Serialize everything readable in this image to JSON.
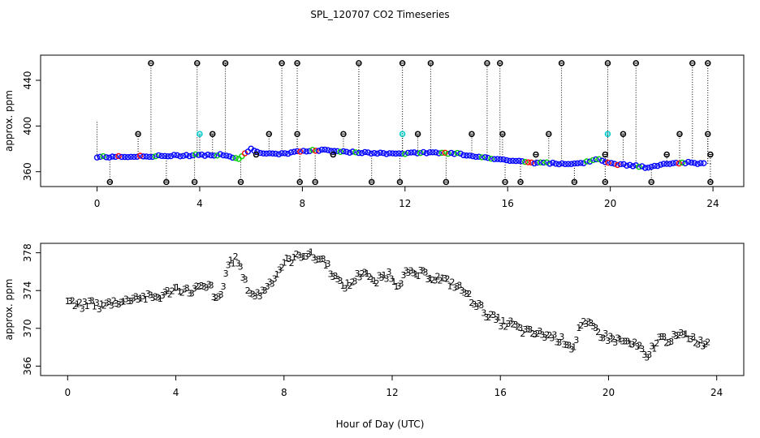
{
  "title": "SPL_120707  CO2 Timeseries",
  "xlabel": "Hour of Day (UTC)",
  "colors": {
    "s1": "#ff0000",
    "s2": "#00cc00",
    "s3": "#0000ff",
    "extra": "#00cccc",
    "stem": "#000000"
  },
  "chart_data": [
    {
      "type": "scatter",
      "ylabel": "approx. ppm",
      "xlim": [
        -2.2,
        25.2
      ],
      "ylim": [
        347,
        462
      ],
      "xticks": [
        0,
        4,
        8,
        12,
        16,
        20,
        24
      ],
      "yticks": [
        360,
        400,
        440
      ],
      "baseline": [
        [
          0,
          373
        ],
        [
          1,
          373
        ],
        [
          2,
          373.5
        ],
        [
          3,
          374
        ],
        [
          4,
          374.5
        ],
        [
          5,
          375
        ],
        [
          5.5,
          371
        ],
        [
          6,
          380
        ],
        [
          6.5,
          376
        ],
        [
          7,
          375
        ],
        [
          8,
          378
        ],
        [
          9,
          379
        ],
        [
          10,
          377
        ],
        [
          11,
          376
        ],
        [
          12,
          376
        ],
        [
          13,
          377
        ],
        [
          14,
          376
        ],
        [
          15,
          373
        ],
        [
          16,
          370
        ],
        [
          17,
          368
        ],
        [
          18,
          367
        ],
        [
          19,
          368
        ],
        [
          19.5,
          372
        ],
        [
          20,
          367
        ],
        [
          21,
          365
        ],
        [
          21.5,
          363
        ],
        [
          22,
          367
        ],
        [
          23,
          368
        ],
        [
          23.7,
          367
        ]
      ],
      "spikes": [
        {
          "x": 0.0,
          "y": 405,
          "marker": false
        },
        {
          "x": 0.5,
          "y": 351
        },
        {
          "x": 1.6,
          "y": 393
        },
        {
          "x": 2.1,
          "y": 455
        },
        {
          "x": 2.7,
          "y": 351
        },
        {
          "x": 3.8,
          "y": 351
        },
        {
          "x": 3.9,
          "y": 455
        },
        {
          "x": 4.0,
          "y": 393,
          "color": "extra"
        },
        {
          "x": 4.5,
          "y": 393
        },
        {
          "x": 5.0,
          "y": 455
        },
        {
          "x": 5.6,
          "y": 351
        },
        {
          "x": 6.2,
          "y": 375
        },
        {
          "x": 6.7,
          "y": 393
        },
        {
          "x": 7.2,
          "y": 455
        },
        {
          "x": 7.8,
          "y": 455
        },
        {
          "x": 7.8,
          "y": 393
        },
        {
          "x": 7.9,
          "y": 351
        },
        {
          "x": 8.5,
          "y": 351
        },
        {
          "x": 9.2,
          "y": 375
        },
        {
          "x": 9.6,
          "y": 393
        },
        {
          "x": 10.2,
          "y": 455
        },
        {
          "x": 10.7,
          "y": 351
        },
        {
          "x": 11.8,
          "y": 351
        },
        {
          "x": 11.9,
          "y": 455
        },
        {
          "x": 11.9,
          "y": 393,
          "color": "extra"
        },
        {
          "x": 12.5,
          "y": 393
        },
        {
          "x": 13.0,
          "y": 455
        },
        {
          "x": 13.6,
          "y": 351
        },
        {
          "x": 14.6,
          "y": 393
        },
        {
          "x": 15.2,
          "y": 455
        },
        {
          "x": 15.7,
          "y": 455
        },
        {
          "x": 15.8,
          "y": 393
        },
        {
          "x": 15.9,
          "y": 351
        },
        {
          "x": 16.5,
          "y": 351
        },
        {
          "x": 17.1,
          "y": 375
        },
        {
          "x": 17.6,
          "y": 393
        },
        {
          "x": 18.1,
          "y": 455
        },
        {
          "x": 18.6,
          "y": 351
        },
        {
          "x": 19.8,
          "y": 351
        },
        {
          "x": 19.9,
          "y": 455
        },
        {
          "x": 19.8,
          "y": 375
        },
        {
          "x": 19.9,
          "y": 393,
          "color": "extra"
        },
        {
          "x": 20.5,
          "y": 393
        },
        {
          "x": 21.0,
          "y": 455
        },
        {
          "x": 21.6,
          "y": 351
        },
        {
          "x": 22.2,
          "y": 375
        },
        {
          "x": 22.7,
          "y": 393
        },
        {
          "x": 23.2,
          "y": 455
        },
        {
          "x": 23.8,
          "y": 455
        },
        {
          "x": 23.8,
          "y": 393
        },
        {
          "x": 23.9,
          "y": 351
        },
        {
          "x": 23.9,
          "y": 375
        }
      ]
    },
    {
      "type": "scatter",
      "ylabel": "approx. ppm",
      "xlim": [
        -1.0,
        25.0
      ],
      "ylim": [
        365,
        379
      ],
      "xticks": [
        0,
        4,
        8,
        12,
        16,
        20,
        24
      ],
      "yticks": [
        366,
        370,
        374,
        378
      ],
      "series": [
        {
          "symbol": "1",
          "color": "s1"
        },
        {
          "symbol": "2",
          "color": "s2"
        },
        {
          "symbol": "3",
          "color": "s3"
        }
      ],
      "baseline": [
        [
          0,
          373
        ],
        [
          0.3,
          372.4
        ],
        [
          0.6,
          372.4
        ],
        [
          0.9,
          372.8
        ],
        [
          1.2,
          372.3
        ],
        [
          1.5,
          372.6
        ],
        [
          1.8,
          372.9
        ],
        [
          2.1,
          372.8
        ],
        [
          2.4,
          373.3
        ],
        [
          2.7,
          373.3
        ],
        [
          3.0,
          373.3
        ],
        [
          3.3,
          373.3
        ],
        [
          3.6,
          373.6
        ],
        [
          3.9,
          374.2
        ],
        [
          4.2,
          374.2
        ],
        [
          4.5,
          373.9
        ],
        [
          4.8,
          374.3
        ],
        [
          5.1,
          374.2
        ],
        [
          5.3,
          374.5
        ],
        [
          5.5,
          372.8
        ],
        [
          5.7,
          373.6
        ],
        [
          5.9,
          376.6
        ],
        [
          6.1,
          377.3
        ],
        [
          6.3,
          377.2
        ],
        [
          6.5,
          375.2
        ],
        [
          6.8,
          373.6
        ],
        [
          7.1,
          373.6
        ],
        [
          7.4,
          374.6
        ],
        [
          7.7,
          375.6
        ],
        [
          8.0,
          377.0
        ],
        [
          8.3,
          377.3
        ],
        [
          8.6,
          377.8
        ],
        [
          8.9,
          377.9
        ],
        [
          9.2,
          377.4
        ],
        [
          9.5,
          377.2
        ],
        [
          9.8,
          375.8
        ],
        [
          10.1,
          374.6
        ],
        [
          10.4,
          374.5
        ],
        [
          10.7,
          375.5
        ],
        [
          11.0,
          376.2
        ],
        [
          11.3,
          374.7
        ],
        [
          11.6,
          375.4
        ],
        [
          11.9,
          375.8
        ],
        [
          12.2,
          374.6
        ],
        [
          12.5,
          375.8
        ],
        [
          12.8,
          375.7
        ],
        [
          13.1,
          375.8
        ],
        [
          13.4,
          375.5
        ],
        [
          13.7,
          375.3
        ],
        [
          14.0,
          375.0
        ],
        [
          14.3,
          374.6
        ],
        [
          14.6,
          374.1
        ],
        [
          14.9,
          373.2
        ],
        [
          15.2,
          372.4
        ],
        [
          15.5,
          371.5
        ],
        [
          15.8,
          371.0
        ],
        [
          16.1,
          370.5
        ],
        [
          16.4,
          370.5
        ],
        [
          16.7,
          369.9
        ],
        [
          17.0,
          369.6
        ],
        [
          17.3,
          369.5
        ],
        [
          17.6,
          369.3
        ],
        [
          17.9,
          369.2
        ],
        [
          18.2,
          368.8
        ],
        [
          18.5,
          368.5
        ],
        [
          18.7,
          367.8
        ],
        [
          18.9,
          370.0
        ],
        [
          19.1,
          370.4
        ],
        [
          19.3,
          370.3
        ],
        [
          19.5,
          370.0
        ],
        [
          19.7,
          369.4
        ],
        [
          20.0,
          369.0
        ],
        [
          20.3,
          368.8
        ],
        [
          20.6,
          368.6
        ],
        [
          20.9,
          368.3
        ],
        [
          21.2,
          367.9
        ],
        [
          21.4,
          366.5
        ],
        [
          21.6,
          367.9
        ],
        [
          21.9,
          369.0
        ],
        [
          22.2,
          368.8
        ],
        [
          22.5,
          369.1
        ],
        [
          22.8,
          369.3
        ],
        [
          23.1,
          369.0
        ],
        [
          23.4,
          368.5
        ],
        [
          23.7,
          368.5
        ]
      ]
    }
  ]
}
